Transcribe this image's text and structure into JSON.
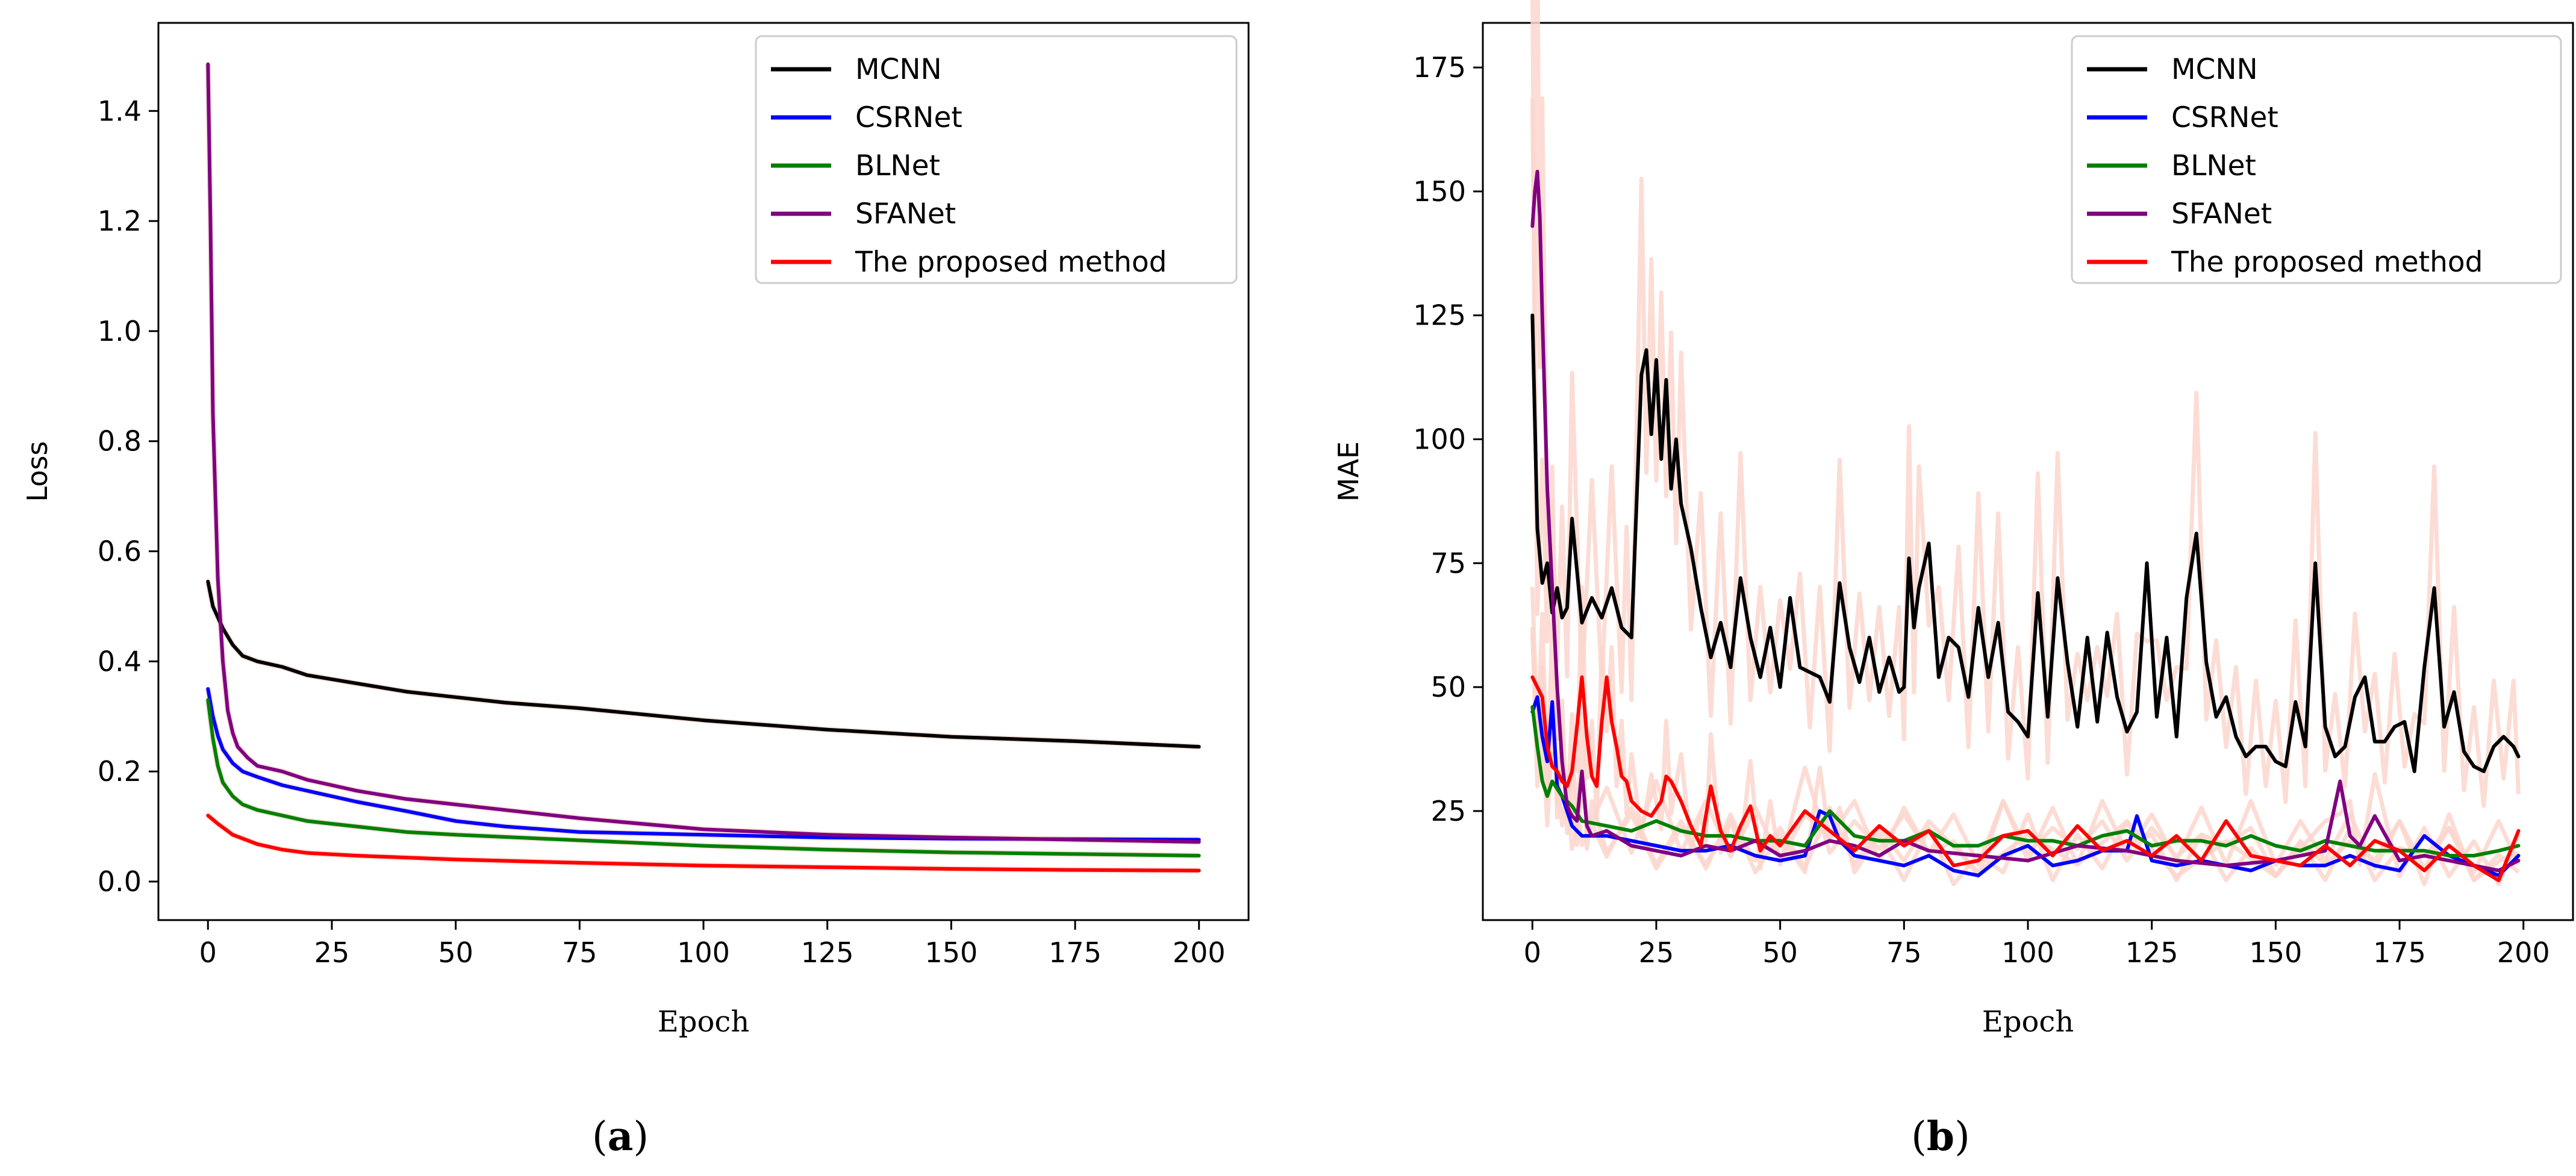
{
  "chart_data": [
    {
      "type": "line",
      "id": "a",
      "caption_letter": "a",
      "xlabel": "Epoch",
      "ylabel": "Loss",
      "xlim": [
        -10,
        210
      ],
      "ylim": [
        -0.07,
        1.56
      ],
      "xticks": [
        0,
        25,
        50,
        75,
        100,
        125,
        150,
        175,
        200
      ],
      "yticks": [
        0.0,
        0.2,
        0.4,
        0.6,
        0.8,
        1.0,
        1.2,
        1.4
      ],
      "ytick_decimals": 1,
      "legend_position": "top-right",
      "series": [
        {
          "name": "MCNN",
          "color": "#000000",
          "x": [
            0,
            1,
            2,
            3,
            5,
            7,
            10,
            15,
            20,
            30,
            40,
            50,
            60,
            75,
            100,
            125,
            150,
            175,
            200
          ],
          "values": [
            0.545,
            0.5,
            0.48,
            0.46,
            0.43,
            0.41,
            0.4,
            0.39,
            0.375,
            0.36,
            0.345,
            0.335,
            0.325,
            0.315,
            0.293,
            0.276,
            0.263,
            0.255,
            0.245
          ]
        },
        {
          "name": "CSRNet",
          "color": "#0000ff",
          "x": [
            0,
            1,
            2,
            3,
            5,
            7,
            10,
            15,
            20,
            30,
            40,
            50,
            60,
            75,
            100,
            125,
            150,
            175,
            200
          ],
          "values": [
            0.35,
            0.3,
            0.265,
            0.24,
            0.215,
            0.2,
            0.19,
            0.175,
            0.165,
            0.145,
            0.128,
            0.11,
            0.1,
            0.09,
            0.085,
            0.08,
            0.078,
            0.077,
            0.076
          ]
        },
        {
          "name": "BLNet",
          "color": "#008000",
          "x": [
            0,
            1,
            2,
            3,
            5,
            7,
            10,
            15,
            20,
            30,
            40,
            50,
            75,
            100,
            125,
            150,
            175,
            200
          ],
          "values": [
            0.33,
            0.26,
            0.21,
            0.18,
            0.155,
            0.14,
            0.13,
            0.12,
            0.11,
            0.1,
            0.09,
            0.085,
            0.075,
            0.065,
            0.058,
            0.053,
            0.05,
            0.047
          ]
        },
        {
          "name": "SFANet",
          "color": "#800080",
          "x": [
            0,
            0.5,
            1,
            2,
            3,
            4,
            5,
            6,
            8,
            10,
            15,
            20,
            25,
            30,
            40,
            50,
            60,
            75,
            100,
            125,
            150,
            175,
            200
          ],
          "values": [
            1.485,
            1.2,
            0.85,
            0.55,
            0.4,
            0.31,
            0.27,
            0.245,
            0.225,
            0.21,
            0.2,
            0.185,
            0.175,
            0.165,
            0.15,
            0.14,
            0.13,
            0.115,
            0.095,
            0.085,
            0.08,
            0.076,
            0.072
          ]
        },
        {
          "name": "The proposed method",
          "color": "#ff0000",
          "x": [
            0,
            2,
            5,
            10,
            15,
            20,
            30,
            50,
            75,
            100,
            125,
            150,
            175,
            200
          ],
          "values": [
            0.12,
            0.105,
            0.085,
            0.068,
            0.058,
            0.052,
            0.047,
            0.04,
            0.034,
            0.029,
            0.026,
            0.023,
            0.021,
            0.02
          ]
        }
      ]
    },
    {
      "type": "line",
      "id": "b",
      "caption_letter": "b",
      "xlabel": "Epoch",
      "ylabel": "MAE",
      "xlim": [
        -10,
        210
      ],
      "ylim": [
        3,
        184
      ],
      "xticks": [
        0,
        25,
        50,
        75,
        100,
        125,
        150,
        175,
        200
      ],
      "yticks": [
        25,
        50,
        75,
        100,
        125,
        150,
        175
      ],
      "ytick_decimals": 0,
      "legend_position": "top-right",
      "series": [
        {
          "name": "MCNN",
          "color": "#000000",
          "x": [
            0,
            1,
            2,
            3,
            4,
            5,
            6,
            7,
            8,
            10,
            12,
            14,
            16,
            18,
            19,
            20,
            22,
            23,
            24,
            25,
            26,
            27,
            28,
            29,
            30,
            32,
            34,
            36,
            38,
            40,
            42,
            44,
            46,
            48,
            50,
            52,
            54,
            56,
            58,
            60,
            62,
            64,
            66,
            68,
            70,
            72,
            74,
            75,
            76,
            77,
            78,
            80,
            82,
            84,
            86,
            88,
            90,
            92,
            94,
            96,
            98,
            100,
            102,
            104,
            106,
            108,
            110,
            112,
            114,
            116,
            118,
            120,
            122,
            124,
            126,
            128,
            130,
            132,
            134,
            136,
            138,
            140,
            142,
            144,
            146,
            148,
            150,
            152,
            154,
            156,
            158,
            160,
            162,
            164,
            166,
            168,
            170,
            172,
            174,
            176,
            178,
            180,
            182,
            184,
            186,
            188,
            190,
            192,
            194,
            196,
            198,
            199
          ],
          "values": [
            125,
            82,
            71,
            75,
            65,
            70,
            64,
            66,
            84,
            63,
            68,
            64,
            70,
            62,
            61,
            60,
            113,
            118,
            101,
            116,
            96,
            112,
            90,
            100,
            87,
            78,
            66,
            56,
            63,
            54,
            72,
            60,
            52,
            62,
            50,
            68,
            54,
            53,
            52,
            47,
            71,
            58,
            51,
            60,
            49,
            56,
            49,
            50,
            76,
            62,
            70,
            79,
            52,
            60,
            58,
            48,
            66,
            52,
            63,
            45,
            43,
            40,
            69,
            44,
            72,
            55,
            42,
            60,
            43,
            61,
            48,
            41,
            45,
            75,
            44,
            60,
            40,
            68,
            81,
            55,
            44,
            48,
            40,
            36,
            38,
            38,
            35,
            34,
            47,
            38,
            75,
            42,
            36,
            38,
            48,
            52,
            39,
            39,
            42,
            43,
            33,
            54,
            70,
            42,
            49,
            37,
            34,
            33,
            38,
            40,
            38,
            36
          ]
        },
        {
          "name": "CSRNet",
          "color": "#0000ff",
          "x": [
            0,
            1,
            2,
            3,
            4,
            5,
            6,
            8,
            10,
            15,
            20,
            25,
            30,
            35,
            40,
            45,
            50,
            55,
            58,
            60,
            62,
            65,
            70,
            75,
            80,
            85,
            90,
            95,
            100,
            105,
            110,
            115,
            120,
            122,
            125,
            130,
            135,
            140,
            145,
            150,
            155,
            160,
            165,
            170,
            175,
            180,
            185,
            190,
            195,
            199
          ],
          "values": [
            45,
            48,
            40,
            35,
            47,
            30,
            28,
            22,
            20,
            20,
            19,
            18,
            17,
            17,
            18,
            16,
            15,
            16,
            25,
            24,
            19,
            16,
            15,
            14,
            16,
            13,
            12,
            16,
            18,
            14,
            15,
            17,
            17,
            24,
            15,
            14,
            15,
            14,
            13,
            15,
            14,
            14,
            16,
            14,
            13,
            20,
            16,
            14,
            12,
            16
          ]
        },
        {
          "name": "BLNet",
          "color": "#008000",
          "x": [
            0,
            1,
            2,
            3,
            4,
            6,
            8,
            10,
            15,
            20,
            25,
            30,
            35,
            40,
            45,
            50,
            55,
            60,
            65,
            70,
            75,
            80,
            85,
            90,
            95,
            100,
            105,
            110,
            115,
            120,
            125,
            130,
            135,
            140,
            145,
            150,
            155,
            160,
            165,
            170,
            175,
            180,
            185,
            190,
            195,
            199
          ],
          "values": [
            46,
            38,
            31,
            28,
            31,
            28,
            26,
            23,
            22,
            21,
            23,
            21,
            20,
            20,
            19,
            19,
            18,
            25,
            20,
            19,
            19,
            21,
            18,
            18,
            20,
            19,
            19,
            18,
            20,
            21,
            18,
            19,
            19,
            18,
            20,
            18,
            17,
            19,
            18,
            17,
            17,
            17,
            16,
            16,
            17,
            18
          ]
        },
        {
          "name": "SFANet",
          "color": "#800080",
          "x": [
            0,
            0.5,
            1,
            1.5,
            2,
            3,
            4,
            5,
            6,
            7,
            8,
            9,
            10,
            11,
            12,
            15,
            20,
            25,
            30,
            35,
            40,
            45,
            50,
            55,
            60,
            65,
            70,
            75,
            80,
            90,
            100,
            110,
            120,
            130,
            140,
            150,
            160,
            163,
            165,
            167,
            170,
            175,
            180,
            185,
            190,
            195,
            199
          ],
          "values": [
            143,
            150,
            154,
            145,
            125,
            90,
            70,
            50,
            35,
            26,
            24,
            23,
            33,
            22,
            20,
            21,
            18,
            17,
            16,
            18,
            17,
            19,
            16,
            17,
            19,
            18,
            16,
            19,
            17,
            16,
            15,
            18,
            17,
            15,
            14,
            15,
            17,
            31,
            20,
            18,
            24,
            15,
            16,
            15,
            14,
            13,
            15
          ]
        },
        {
          "name": "The proposed method",
          "color": "#ff0000",
          "x": [
            0,
            1,
            2,
            3,
            4,
            5,
            6,
            7,
            8,
            9,
            10,
            11,
            12,
            13,
            14,
            15,
            16,
            17,
            18,
            19,
            20,
            22,
            24,
            26,
            27,
            28,
            30,
            32,
            34,
            35,
            36,
            38,
            40,
            42,
            44,
            46,
            48,
            50,
            55,
            60,
            65,
            70,
            75,
            80,
            85,
            90,
            95,
            100,
            105,
            110,
            115,
            120,
            125,
            130,
            135,
            140,
            145,
            150,
            155,
            160,
            165,
            170,
            175,
            180,
            185,
            190,
            195,
            199
          ],
          "values": [
            52,
            50,
            48,
            38,
            34,
            33,
            31,
            30,
            33,
            42,
            52,
            40,
            32,
            30,
            43,
            52,
            43,
            38,
            32,
            31,
            27,
            25,
            24,
            27,
            32,
            31,
            27,
            22,
            18,
            24,
            30,
            21,
            17,
            22,
            26,
            17,
            20,
            18,
            25,
            21,
            17,
            22,
            18,
            21,
            14,
            15,
            20,
            21,
            16,
            22,
            17,
            19,
            16,
            20,
            15,
            23,
            16,
            15,
            14,
            18,
            14,
            19,
            17,
            13,
            18,
            14,
            11,
            21
          ]
        }
      ]
    }
  ],
  "captions": {
    "a": "a",
    "b": "b"
  }
}
